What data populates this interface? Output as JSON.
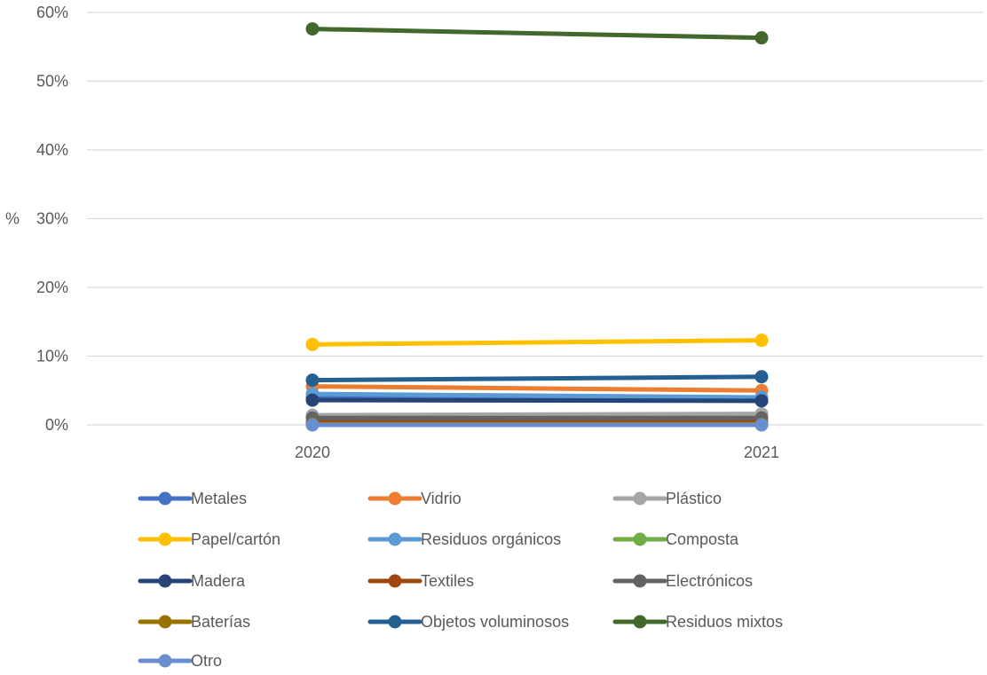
{
  "chart_data": {
    "type": "line",
    "title": "",
    "xlabel": "",
    "ylabel": "%",
    "categories": [
      "2020",
      "2021"
    ],
    "y_ticks": [
      "0%",
      "10%",
      "20%",
      "30%",
      "40%",
      "50%",
      "60%"
    ],
    "ylim": [
      0,
      0.6
    ],
    "grid": true,
    "legend_position": "bottom",
    "series": [
      {
        "name": "Metales",
        "values": [
          0.04,
          0.035
        ],
        "color": "#4472C4"
      },
      {
        "name": "Vidrio",
        "values": [
          0.056,
          0.05
        ],
        "color": "#ED7D31"
      },
      {
        "name": "Plástico",
        "values": [
          0.014,
          0.016
        ],
        "color": "#A5A5A5"
      },
      {
        "name": "Papel/cartón",
        "values": [
          0.117,
          0.123
        ],
        "color": "#FFC000"
      },
      {
        "name": "Residuos orgánicos",
        "values": [
          0.045,
          0.04
        ],
        "color": "#5B9BD5"
      },
      {
        "name": "Composta",
        "values": [
          0.0,
          0.0
        ],
        "color": "#70AD47"
      },
      {
        "name": "Madera",
        "values": [
          0.036,
          0.035
        ],
        "color": "#264478"
      },
      {
        "name": "Textiles",
        "values": [
          0.004,
          0.004
        ],
        "color": "#9E480E"
      },
      {
        "name": "Electrónicos",
        "values": [
          0.01,
          0.01
        ],
        "color": "#636363"
      },
      {
        "name": "Baterías",
        "values": [
          0.001,
          0.001
        ],
        "color": "#997300"
      },
      {
        "name": "Objetos voluminosos",
        "values": [
          0.065,
          0.07
        ],
        "color": "#255E91"
      },
      {
        "name": "Residuos mixtos",
        "values": [
          0.576,
          0.563
        ],
        "color": "#43682B"
      },
      {
        "name": "Otro",
        "values": [
          0.0,
          0.0
        ],
        "color": "#698ED0"
      }
    ]
  }
}
